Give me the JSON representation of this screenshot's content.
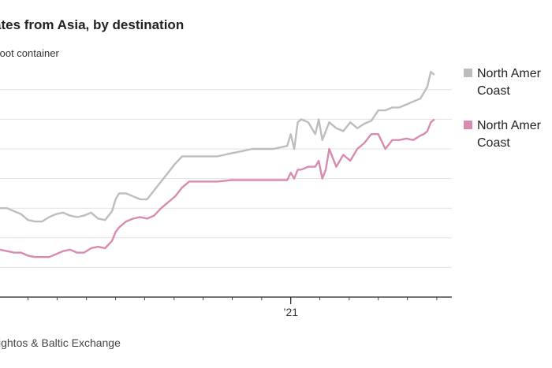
{
  "title": "ates from Asia, by destination",
  "subtitle": "foot container",
  "source": "ightos & Baltic Exchange",
  "chart_data": {
    "type": "line",
    "xlim": [
      2020.17,
      2021.46
    ],
    "ylim": [
      -1,
      7.5
    ],
    "gridlines": [
      0,
      1,
      2,
      3,
      4,
      5,
      6,
      7
    ],
    "x_tick_labels": [
      {
        "x": 2021.0,
        "label": "’21"
      }
    ],
    "x_minor_ticks": [
      2020.25,
      2020.333,
      2020.417,
      2020.5,
      2020.583,
      2020.667,
      2020.75,
      2020.833,
      2020.917,
      2021.0,
      2021.083,
      2021.167,
      2021.25,
      2021.333,
      2021.417
    ],
    "series": [
      {
        "name": "North America East Coast",
        "color": "#bdbdbd",
        "x": [
          2020.17,
          2020.19,
          2020.21,
          2020.23,
          2020.25,
          2020.27,
          2020.29,
          2020.31,
          2020.33,
          2020.35,
          2020.37,
          2020.39,
          2020.41,
          2020.43,
          2020.45,
          2020.47,
          2020.49,
          2020.5,
          2020.51,
          2020.53,
          2020.55,
          2020.57,
          2020.59,
          2020.61,
          2020.63,
          2020.65,
          2020.67,
          2020.69,
          2020.71,
          2020.73,
          2020.75,
          2020.77,
          2020.79,
          2020.81,
          2020.83,
          2020.85,
          2020.87,
          2020.89,
          2020.91,
          2020.93,
          2020.95,
          2020.97,
          2020.99,
          2021.0,
          2021.01,
          2021.02,
          2021.03,
          2021.05,
          2021.07,
          2021.08,
          2021.09,
          2021.1,
          2021.11,
          2021.13,
          2021.15,
          2021.17,
          2021.19,
          2021.21,
          2021.23,
          2021.25,
          2021.27,
          2021.29,
          2021.31,
          2021.33,
          2021.35,
          2021.37,
          2021.38,
          2021.39,
          2021.4,
          2021.41
        ],
        "y": [
          3.0,
          3.0,
          2.9,
          2.8,
          2.6,
          2.55,
          2.55,
          2.7,
          2.8,
          2.85,
          2.75,
          2.7,
          2.75,
          2.85,
          2.65,
          2.6,
          2.9,
          3.3,
          3.5,
          3.5,
          3.4,
          3.3,
          3.3,
          3.6,
          3.9,
          4.2,
          4.5,
          4.75,
          4.75,
          4.75,
          4.75,
          4.75,
          4.75,
          4.8,
          4.85,
          4.9,
          4.95,
          5.0,
          5.0,
          5.0,
          5.0,
          5.05,
          5.1,
          5.5,
          5.0,
          5.9,
          6.0,
          5.9,
          5.5,
          6.0,
          5.3,
          5.6,
          5.9,
          5.7,
          5.6,
          5.9,
          5.7,
          5.85,
          5.95,
          6.3,
          6.3,
          6.4,
          6.4,
          6.5,
          6.6,
          6.7,
          6.9,
          7.1,
          7.6,
          7.5
        ]
      },
      {
        "name": "North America West Coast",
        "color": "#d98ab0",
        "x": [
          2020.17,
          2020.19,
          2020.21,
          2020.23,
          2020.25,
          2020.27,
          2020.29,
          2020.31,
          2020.33,
          2020.35,
          2020.37,
          2020.39,
          2020.41,
          2020.43,
          2020.45,
          2020.47,
          2020.49,
          2020.5,
          2020.51,
          2020.53,
          2020.55,
          2020.57,
          2020.59,
          2020.61,
          2020.63,
          2020.65,
          2020.67,
          2020.69,
          2020.71,
          2020.73,
          2020.75,
          2020.77,
          2020.79,
          2020.81,
          2020.83,
          2020.85,
          2020.87,
          2020.89,
          2020.91,
          2020.93,
          2020.95,
          2020.97,
          2020.99,
          2021.0,
          2021.01,
          2021.02,
          2021.03,
          2021.05,
          2021.07,
          2021.08,
          2021.09,
          2021.1,
          2021.11,
          2021.13,
          2021.15,
          2021.17,
          2021.19,
          2021.21,
          2021.23,
          2021.25,
          2021.27,
          2021.29,
          2021.31,
          2021.33,
          2021.35,
          2021.37,
          2021.38,
          2021.39,
          2021.4,
          2021.41
        ],
        "y": [
          1.6,
          1.55,
          1.5,
          1.5,
          1.4,
          1.35,
          1.35,
          1.35,
          1.45,
          1.55,
          1.6,
          1.5,
          1.5,
          1.65,
          1.7,
          1.65,
          1.9,
          2.2,
          2.35,
          2.55,
          2.65,
          2.7,
          2.65,
          2.75,
          3.0,
          3.2,
          3.4,
          3.7,
          3.9,
          3.9,
          3.9,
          3.9,
          3.9,
          3.92,
          3.95,
          3.95,
          3.95,
          3.95,
          3.95,
          3.95,
          3.95,
          3.95,
          3.95,
          4.2,
          4.0,
          4.3,
          4.3,
          4.4,
          4.4,
          4.6,
          4.0,
          4.3,
          5.0,
          4.4,
          4.8,
          4.6,
          5.0,
          5.2,
          5.5,
          5.5,
          5.0,
          5.3,
          5.3,
          5.35,
          5.3,
          5.45,
          5.5,
          5.6,
          5.9,
          6.0
        ]
      }
    ],
    "legend": {
      "position": "right",
      "items": [
        {
          "label": "North Amer Coast",
          "color": "#bdbdbd"
        },
        {
          "label": "North Amer Coast",
          "color": "#d98ab0"
        }
      ]
    }
  }
}
